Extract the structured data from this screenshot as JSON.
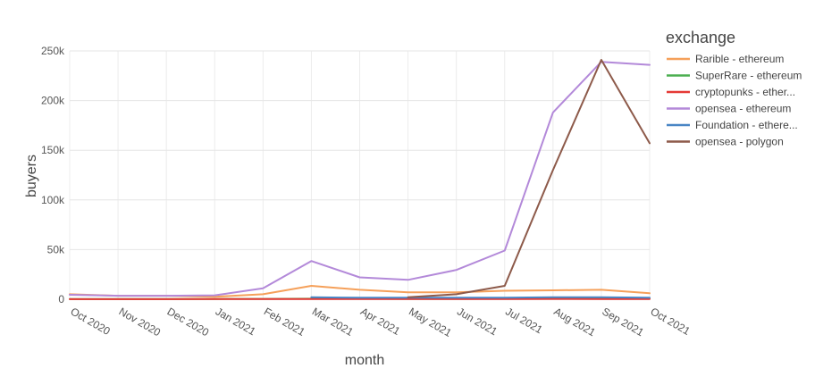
{
  "chart_data": {
    "type": "line",
    "xlabel": "month",
    "ylabel": "buyers",
    "ylim": [
      0,
      250000
    ],
    "grid": true,
    "legend": {
      "title": "exchange",
      "placement": "right"
    },
    "categories": [
      "Oct 2020",
      "Nov 2020",
      "Dec 2020",
      "Jan 2021",
      "Feb 2021",
      "Mar 2021",
      "Apr 2021",
      "May 2021",
      "Jun 2021",
      "Jul 2021",
      "Aug 2021",
      "Sep 2021",
      "Oct 2021"
    ],
    "y_ticks": [
      {
        "value": 0,
        "label": "0"
      },
      {
        "value": 50000,
        "label": "50k"
      },
      {
        "value": 100000,
        "label": "100k"
      },
      {
        "value": 150000,
        "label": "150k"
      },
      {
        "value": 200000,
        "label": "200k"
      },
      {
        "value": 250000,
        "label": "250k"
      }
    ],
    "series": [
      {
        "name": "Rarible - ethereum",
        "color": "#f5a05a",
        "x": [
          "Oct 2020",
          "Nov 2020",
          "Dec 2020",
          "Jan 2021",
          "Feb 2021",
          "Mar 2021",
          "Apr 2021",
          "May 2021",
          "Jun 2021",
          "Jul 2021",
          "Aug 2021",
          "Sep 2021",
          "Oct 2021"
        ],
        "values": [
          5000,
          3500,
          3500,
          2500,
          5000,
          13500,
          9500,
          7000,
          7000,
          8500,
          9000,
          9500,
          6000
        ]
      },
      {
        "name": "SuperRare - ethereum",
        "color": "#4caf50",
        "x": [
          "Oct 2020",
          "Nov 2020",
          "Dec 2020",
          "Jan 2021",
          "Feb 2021",
          "Mar 2021",
          "Apr 2021",
          "May 2021",
          "Jun 2021",
          "Jul 2021",
          "Aug 2021",
          "Sep 2021",
          "Oct 2021"
        ],
        "values": [
          200,
          200,
          200,
          300,
          400,
          500,
          500,
          400,
          400,
          500,
          600,
          600,
          500
        ]
      },
      {
        "name": "cryptopunks - ether...",
        "color": "#e53935",
        "x": [
          "Oct 2020",
          "Nov 2020",
          "Dec 2020",
          "Jan 2021",
          "Feb 2021",
          "Mar 2021",
          "Apr 2021",
          "May 2021",
          "Jun 2021",
          "Jul 2021",
          "Aug 2021",
          "Sep 2021",
          "Oct 2021"
        ],
        "values": [
          100,
          100,
          100,
          200,
          300,
          300,
          200,
          200,
          200,
          300,
          400,
          300,
          200
        ]
      },
      {
        "name": "opensea - ethereum",
        "color": "#b389d9",
        "x": [
          "Oct 2020",
          "Nov 2020",
          "Dec 2020",
          "Jan 2021",
          "Feb 2021",
          "Mar 2021",
          "Apr 2021",
          "May 2021",
          "Jun 2021",
          "Jul 2021",
          "Aug 2021",
          "Sep 2021",
          "Oct 2021"
        ],
        "values": [
          4500,
          3500,
          3500,
          4000,
          11000,
          38500,
          22000,
          19500,
          29500,
          49000,
          188000,
          239000,
          236000
        ]
      },
      {
        "name": "Foundation - ethere...",
        "color": "#4a86c5",
        "x": [
          "Mar 2021",
          "Apr 2021",
          "May 2021",
          "Jun 2021",
          "Jul 2021",
          "Aug 2021",
          "Sep 2021",
          "Oct 2021"
        ],
        "values": [
          2000,
          1500,
          1500,
          1500,
          1500,
          2000,
          2000,
          1500
        ]
      },
      {
        "name": "opensea - polygon",
        "color": "#8d5a4a",
        "x": [
          "May 2021",
          "Jun 2021",
          "Jul 2021",
          "Aug 2021",
          "Sep 2021",
          "Oct 2021"
        ],
        "values": [
          2000,
          5000,
          13500,
          130000,
          241000,
          157000
        ]
      }
    ]
  }
}
